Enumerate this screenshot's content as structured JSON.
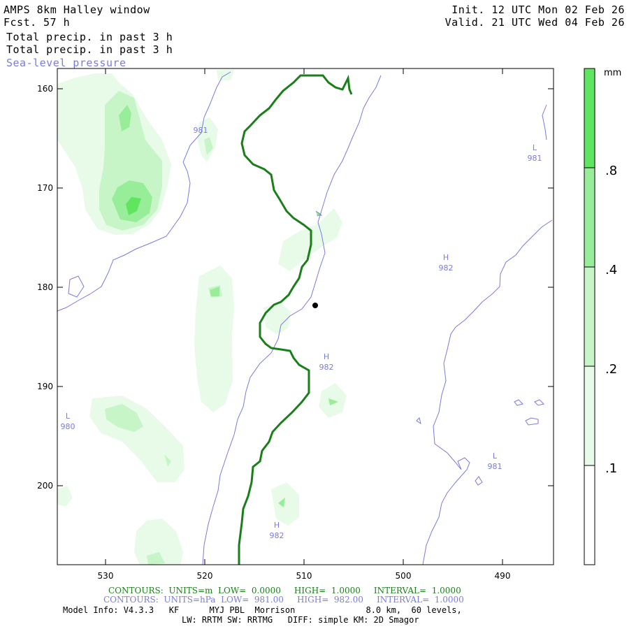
{
  "header": {
    "model": "AMPS 8km Halley window",
    "fcst_label": "Fcst.",
    "fcst_value": "57 h",
    "init": "Init. 12 UTC Mon 02 Feb 26",
    "valid": "Valid. 21 UTC Wed 04 Feb 26",
    "field1": "Total precip. in past 3 h",
    "field2": "Total precip. in past 3 h",
    "field3": "Sea-level pressure"
  },
  "map": {
    "y_ticks": [
      "160",
      "170",
      "180",
      "190",
      "200"
    ],
    "x_ticks": [
      "530",
      "520",
      "510",
      "500",
      "490"
    ],
    "pressure_labels": [
      {
        "sym": "",
        "val": "981"
      },
      {
        "sym": "L",
        "val": "981"
      },
      {
        "sym": "H",
        "val": "982"
      },
      {
        "sym": "H",
        "val": "982"
      },
      {
        "sym": "L",
        "val": "980"
      },
      {
        "sym": "L",
        "val": "981"
      },
      {
        "sym": "H",
        "val": "982"
      }
    ],
    "colors": {
      "precip_1": "#e8fbe8",
      "precip_2": "#c8f5c8",
      "precip_3": "#98ee98",
      "precip_4": "#5fe55f",
      "slp_contour": "#7b7bdd",
      "terrain_contour": "#1a7f1a"
    }
  },
  "colorbar": {
    "unit": "mm",
    "labels": [
      ".8",
      ".4",
      ".2",
      ".1"
    ]
  },
  "footer": {
    "contours_green": "CONTOURS:  UNITS=m  LOW=  0.0000     HIGH=  1.0000     INTERVAL=  1.0000",
    "contours_blue": "CONTOURS:  UNITS=hPa  LOW=  981.00     HIGH=  982.00     INTERVAL=  1.0000",
    "model_info": "Model Info: V4.3.3   KF      MYJ PBL  Morrison              8.0 km,  60 levels,",
    "physics": "LW: RRTM SW: RRTMG   DIFF: simple KM: 2D Smagor"
  }
}
